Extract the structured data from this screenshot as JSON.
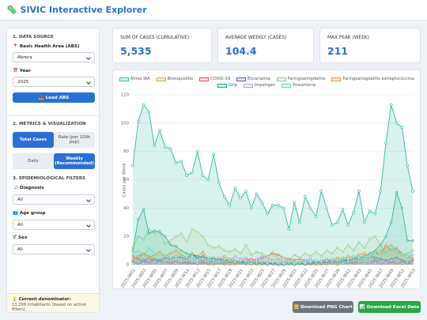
{
  "header": {
    "title": "🦠 SIVIC Interactive Explorer"
  },
  "sidebar": {
    "sections": [
      {
        "title": "1. DATA SOURCE"
      },
      {
        "title": "2. METRICS & VISUALIZATION"
      },
      {
        "title": "3. EPIDEMIOLOGICAL FILTERS"
      }
    ],
    "area_label": "📍 Basic Health Area (ABS)",
    "area_value": "Abrera",
    "year_label": "📅 Year",
    "year_value": "2025",
    "load_button": "📥 Load ABS",
    "metric_options": [
      "Total Cases",
      "Rate (per 100k pop)"
    ],
    "period_options": [
      "Daily",
      "Weekly (Recommended)"
    ],
    "diagnosis_label": "🩺 Diagnosis",
    "diagnosis_value": "All",
    "age_label": "👥 Age group",
    "age_value": "All",
    "sex_label": "⚥ Sex",
    "sex_value": "All",
    "denominator_title": "💡 Current denominator:",
    "denominator_text": "13,299 inhabitants (based on active filters)."
  },
  "stats": [
    {
      "label": "SUM OF CASES (CUMULATIVE)",
      "value": "5,535"
    },
    {
      "label": "AVERAGE WEEKLY (CASES)",
      "value": "104.4"
    },
    {
      "label": "MAX PEAK (WEEK)",
      "value": "211"
    }
  ],
  "buttons": [
    "🖼️ Download PNG Chart",
    "📊 Download Excel Data"
  ],
  "chart_data": {
    "type": "line",
    "y_label": "Cases per Week",
    "categories": [
      "2025-W01",
      null,
      "2025-W03",
      null,
      "2025-W05",
      null,
      "2025-W07",
      null,
      "2025-W09",
      null,
      "2025-W11",
      null,
      "2025-W13",
      null,
      "2025-W15",
      null,
      "2025-W17",
      null,
      "2025-W19",
      null,
      "2025-W21",
      null,
      "2025-W23",
      null,
      "2025-W25",
      null,
      "2025-W27",
      null,
      "2025-W29",
      null,
      "2025-W31",
      null,
      "2025-W33",
      null,
      "2025-W35",
      null,
      "2025-W37",
      null,
      "2025-W39",
      null,
      "2025-W41",
      null,
      "2025-W43",
      null,
      "2025-W45",
      null,
      "2025-W47",
      null,
      "2025-W49",
      null,
      "2025-W51",
      null,
      "2025-W53"
    ],
    "ylim": [
      0,
      120
    ],
    "yticks": [
      0,
      20,
      40,
      60,
      80,
      100,
      120
    ],
    "grid": true,
    "series": [
      {
        "name": "Altres IRA",
        "color": "#3cbfa8",
        "values": [
          70,
          101,
          113,
          108,
          84,
          95,
          83,
          82,
          72,
          73,
          63,
          65,
          80,
          63,
          60,
          78,
          58,
          48,
          42,
          54,
          47,
          52,
          40,
          50,
          44,
          36,
          42,
          42,
          40,
          25,
          44,
          30,
          48,
          40,
          34,
          52,
          40,
          28,
          30,
          39,
          28,
          37,
          52,
          30,
          38,
          36,
          52,
          86,
          113,
          100,
          97,
          70,
          52
        ]
      },
      {
        "name": "Bronquiolitis",
        "color": "#e6a23c",
        "values": [
          3,
          5,
          8,
          6,
          4,
          3,
          2,
          3,
          2,
          1,
          1,
          1,
          0,
          1,
          0,
          0,
          1,
          0,
          0,
          0,
          1,
          0,
          0,
          0,
          0,
          1,
          0,
          0,
          0,
          0,
          0,
          0,
          0,
          0,
          0,
          0,
          0,
          1,
          0,
          1,
          1,
          2,
          3,
          4,
          6,
          8,
          10,
          12,
          14,
          10,
          8,
          6,
          4
        ]
      },
      {
        "name": "COVID-19",
        "color": "#e05a5a",
        "values": [
          6,
          4,
          3,
          5,
          2,
          3,
          2,
          1,
          2,
          1,
          2,
          1,
          1,
          2,
          1,
          3,
          2,
          1,
          2,
          1,
          3,
          2,
          4,
          3,
          5,
          6,
          8,
          7,
          5,
          4,
          3,
          4,
          3,
          2,
          2,
          1,
          2,
          3,
          2,
          3,
          2,
          1,
          2,
          1,
          2,
          3,
          2,
          1,
          2,
          1,
          2,
          1,
          1
        ]
      },
      {
        "name": "Escarlatina",
        "color": "#5865c9",
        "values": [
          2,
          1,
          3,
          2,
          4,
          3,
          5,
          4,
          6,
          5,
          4,
          7,
          5,
          6,
          4,
          5,
          3,
          4,
          2,
          3,
          2,
          1,
          2,
          1,
          1,
          0,
          1,
          0,
          0,
          1,
          0,
          1,
          0,
          1,
          2,
          1,
          2,
          3,
          2,
          3,
          4,
          3,
          5,
          4,
          6,
          5,
          4,
          3,
          4,
          5,
          3,
          2,
          3
        ]
      },
      {
        "name": "Faringoamigdalitis",
        "color": "#8fcf7c",
        "values": [
          12,
          20,
          18,
          25,
          22,
          24,
          15,
          17,
          20,
          22,
          16,
          25,
          23,
          20,
          14,
          12,
          13,
          10,
          9,
          11,
          8,
          14,
          7,
          9,
          8,
          6,
          9,
          4,
          5,
          3,
          7,
          5,
          8,
          6,
          9,
          6,
          10,
          8,
          12,
          9,
          14,
          10,
          16,
          12,
          18,
          20,
          14,
          8,
          12,
          9,
          7,
          8,
          10
        ]
      },
      {
        "name": "Faringoamigdalitis estreptocòccica",
        "color": "#f08c3c",
        "values": [
          4,
          6,
          8,
          5,
          7,
          9,
          6,
          8,
          10,
          7,
          5,
          8,
          6,
          9,
          4,
          5,
          3,
          6,
          4,
          3,
          2,
          4,
          3,
          2,
          1,
          2,
          1,
          1,
          2,
          1,
          1,
          2,
          1,
          2,
          3,
          2,
          4,
          3,
          5,
          4,
          6,
          5,
          7,
          8,
          6,
          9,
          7,
          14,
          10,
          12,
          8,
          6,
          5
        ]
      },
      {
        "name": "Grip",
        "color": "#1fae8c",
        "values": [
          10,
          32,
          39,
          22,
          24,
          23,
          20,
          14,
          13,
          10,
          8,
          7,
          6,
          5,
          5,
          4,
          4,
          3,
          3,
          2,
          2,
          2,
          1,
          1,
          1,
          1,
          1,
          1,
          0,
          1,
          0,
          1,
          1,
          1,
          1,
          2,
          2,
          2,
          2,
          3,
          3,
          4,
          5,
          6,
          8,
          10,
          14,
          20,
          30,
          51,
          40,
          17,
          17
        ]
      },
      {
        "name": "Impetigen",
        "color": "#a99ee6",
        "values": [
          1,
          2,
          1,
          3,
          2,
          1,
          2,
          3,
          1,
          2,
          3,
          2,
          1,
          4,
          2,
          3,
          5,
          4,
          3,
          6,
          4,
          5,
          3,
          4,
          6,
          5,
          3,
          4,
          2,
          3,
          1,
          2,
          3,
          4,
          2,
          3,
          4,
          2,
          3,
          1,
          2,
          3,
          2,
          1,
          2,
          1,
          2,
          1,
          3,
          2,
          1,
          2,
          1
        ]
      },
      {
        "name": "Pneumònia",
        "color": "#5cd6c2",
        "values": [
          8,
          10,
          6,
          12,
          8,
          6,
          7,
          5,
          6,
          4,
          5,
          6,
          3,
          4,
          5,
          3,
          2,
          4,
          3,
          2,
          3,
          2,
          1,
          2,
          3,
          1,
          2,
          1,
          1,
          2,
          1,
          2,
          1,
          2,
          3,
          2,
          3,
          4,
          3,
          5,
          4,
          6,
          5,
          4,
          6,
          8,
          7,
          10,
          12,
          9,
          8,
          6,
          7
        ]
      }
    ]
  }
}
